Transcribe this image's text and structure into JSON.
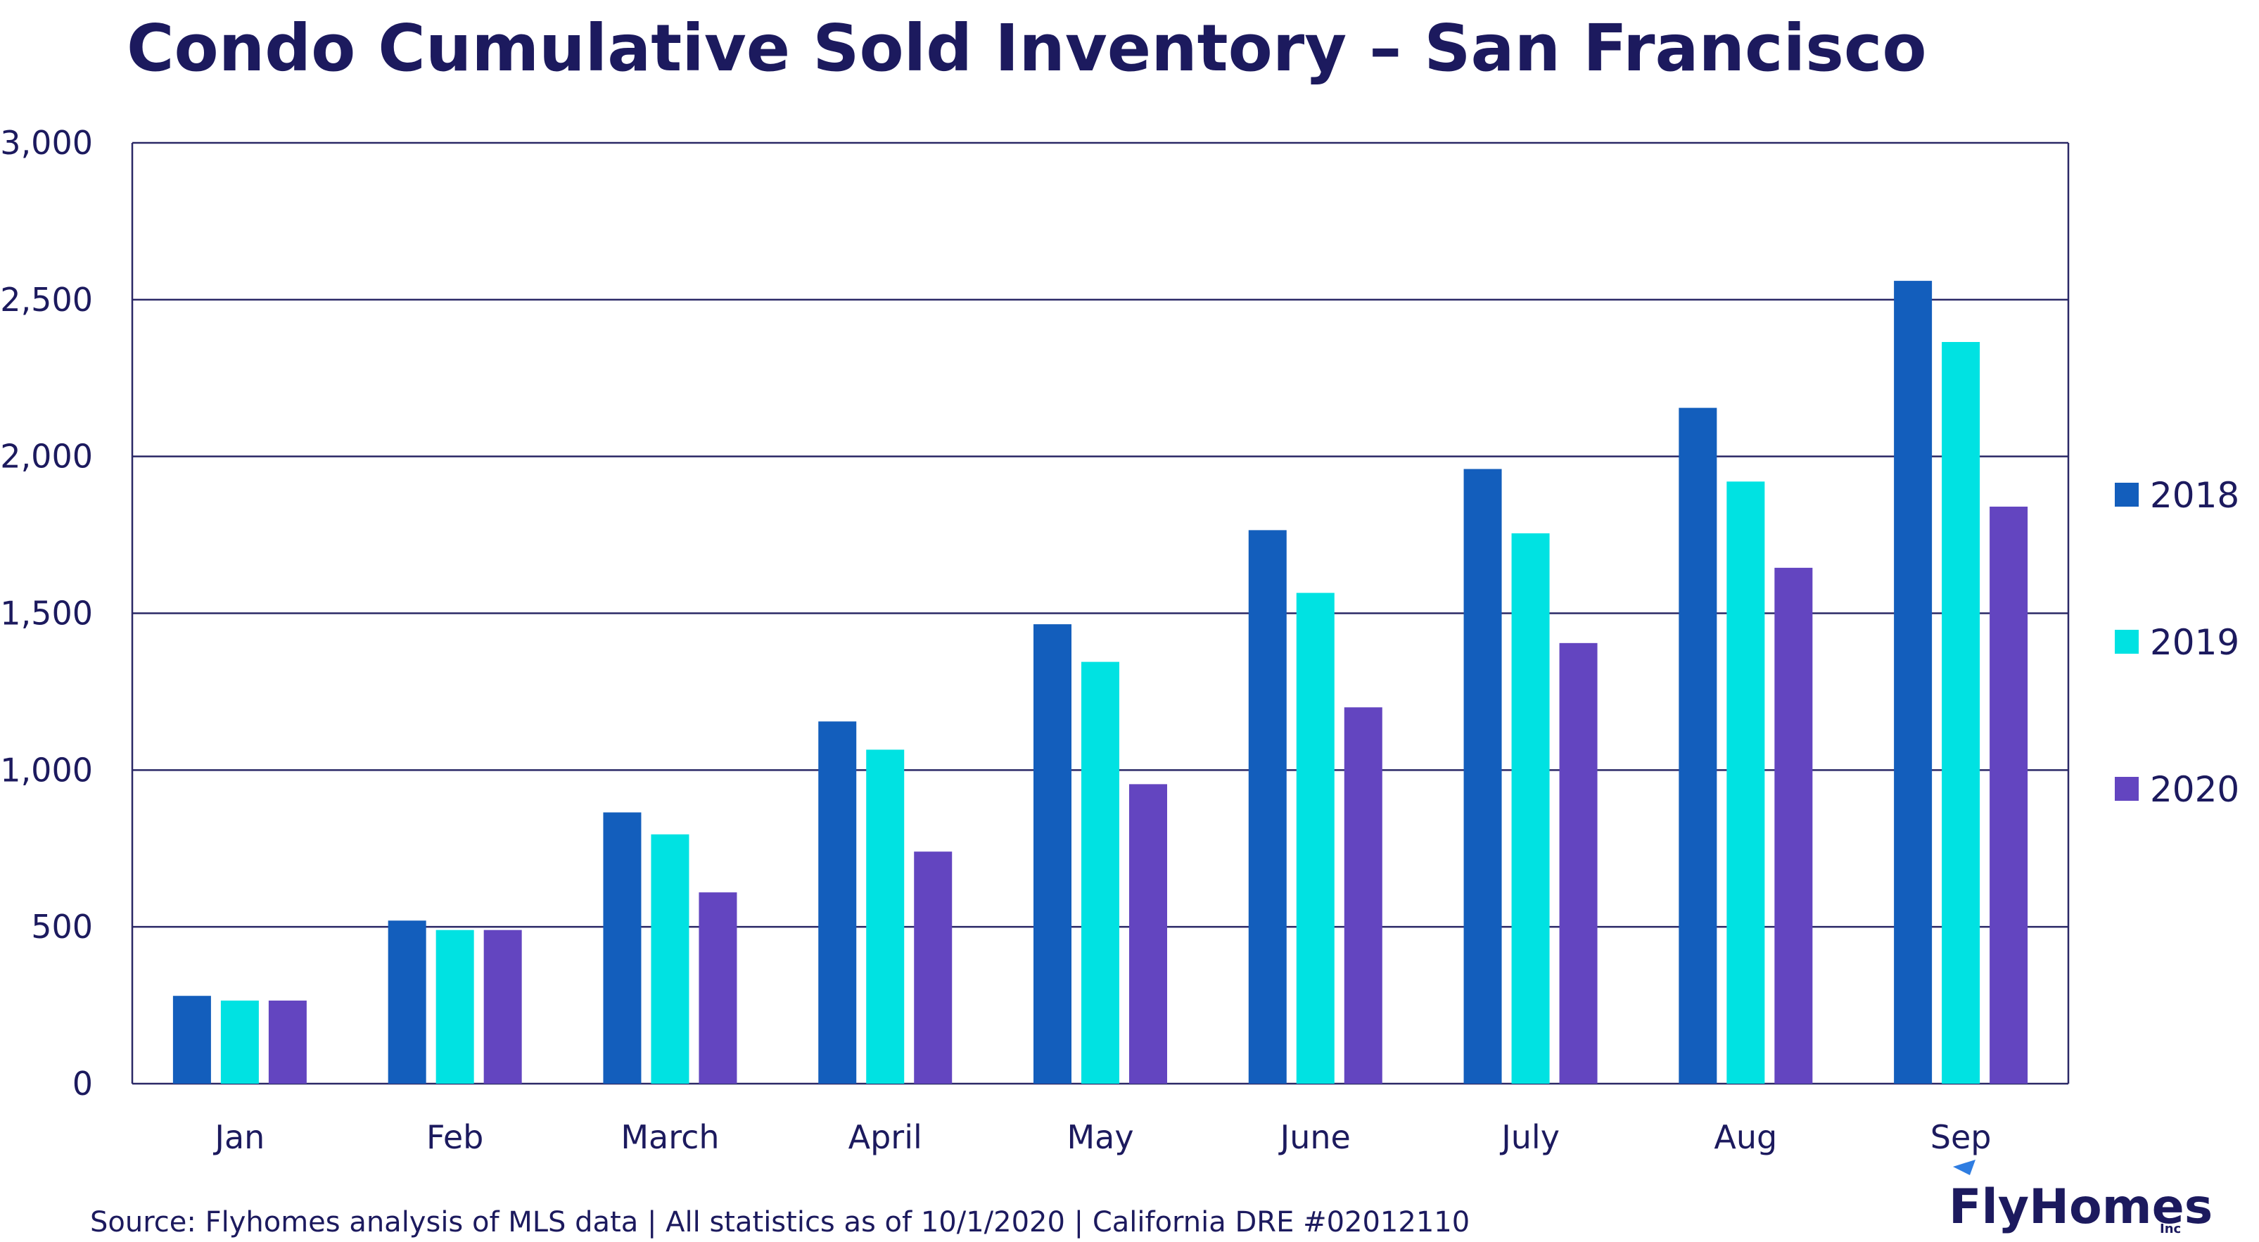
{
  "chart_data": {
    "type": "bar",
    "title": "Condo Cumulative Sold Inventory – San Francisco",
    "categories": [
      "Jan",
      "Feb",
      "March",
      "April",
      "May",
      "June",
      "July",
      "Aug",
      "Sep"
    ],
    "series": [
      {
        "name": "2018",
        "color": "#135ebc",
        "values": [
          280,
          520,
          865,
          1155,
          1465,
          1765,
          1960,
          2155,
          2560
        ]
      },
      {
        "name": "2019",
        "color": "#00e2e2",
        "values": [
          265,
          490,
          795,
          1065,
          1345,
          1565,
          1755,
          1920,
          2365
        ]
      },
      {
        "name": "2020",
        "color": "#6345c0",
        "values": [
          265,
          490,
          610,
          740,
          955,
          1200,
          1405,
          1645,
          1840
        ]
      }
    ],
    "y_ticks": [
      "0",
      "500",
      "1,000",
      "1,500",
      "2,000",
      "2,500",
      "3,000"
    ],
    "ylim": [
      0,
      3000
    ],
    "grid": true,
    "legend_position": "right"
  },
  "footer": {
    "source": "Source: Flyhomes analysis of MLS data | All statistics as of 10/1/2020 | California DRE #02012110"
  },
  "logo": {
    "name": "FlyHomes",
    "suffix": "Inc"
  },
  "colors": {
    "text": "#1c1a5e",
    "grid": "#2a2866"
  }
}
